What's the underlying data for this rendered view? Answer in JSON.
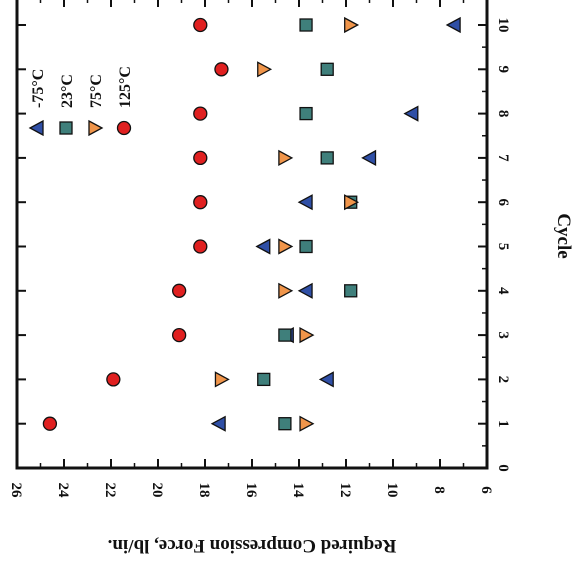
{
  "chart_data": {
    "type": "scatter",
    "orientation": "rotated 90 degrees clockwise (cycle runs top-to-bottom on the right, force runs left-to-right reversed)",
    "xlabel": "Cycle",
    "ylabel": "Required Compression Force, lb/in.",
    "xlim": [
      0,
      11
    ],
    "ylim": [
      6,
      26
    ],
    "x_ticks": [
      "0",
      "1",
      "2",
      "3",
      "4",
      "5",
      "6",
      "7",
      "8",
      "9",
      "10"
    ],
    "y_ticks": [
      "6",
      "8",
      "10",
      "12",
      "14",
      "16",
      "18",
      "20",
      "22",
      "24",
      "26"
    ],
    "legend_placement": "upper inside, stacked along cycle direction",
    "series": [
      {
        "name": "-75°C",
        "marker": "triangle",
        "color": "#2f4fa6",
        "x": [
          1,
          2,
          3,
          4,
          5,
          6,
          7,
          8,
          9,
          10
        ],
        "y": [
          17.4,
          12.8,
          14.5,
          13.7,
          15.5,
          13.7,
          11.0,
          9.2,
          null,
          7.4
        ]
      },
      {
        "name": "23°C",
        "marker": "square",
        "color": "#3f7f7b",
        "x": [
          1,
          2,
          3,
          4,
          5,
          6,
          7,
          8,
          9,
          10
        ],
        "y": [
          14.6,
          15.5,
          14.6,
          11.8,
          13.7,
          11.8,
          12.8,
          13.7,
          12.8,
          13.7
        ]
      },
      {
        "name": "75°C",
        "marker": "triangle",
        "color": "#f0954a",
        "x": [
          1,
          2,
          3,
          4,
          5,
          6,
          7,
          8,
          9,
          10
        ],
        "y": [
          13.7,
          17.3,
          13.7,
          14.6,
          14.6,
          11.8,
          14.6,
          null,
          15.5,
          11.8
        ]
      },
      {
        "name": "125°C",
        "marker": "circle",
        "color": "#e02020",
        "x": [
          1,
          2,
          3,
          4,
          5,
          6,
          7,
          8,
          9,
          10
        ],
        "y": [
          24.6,
          21.9,
          19.1,
          19.1,
          18.2,
          18.2,
          18.2,
          18.2,
          17.3,
          18.2
        ]
      }
    ]
  }
}
